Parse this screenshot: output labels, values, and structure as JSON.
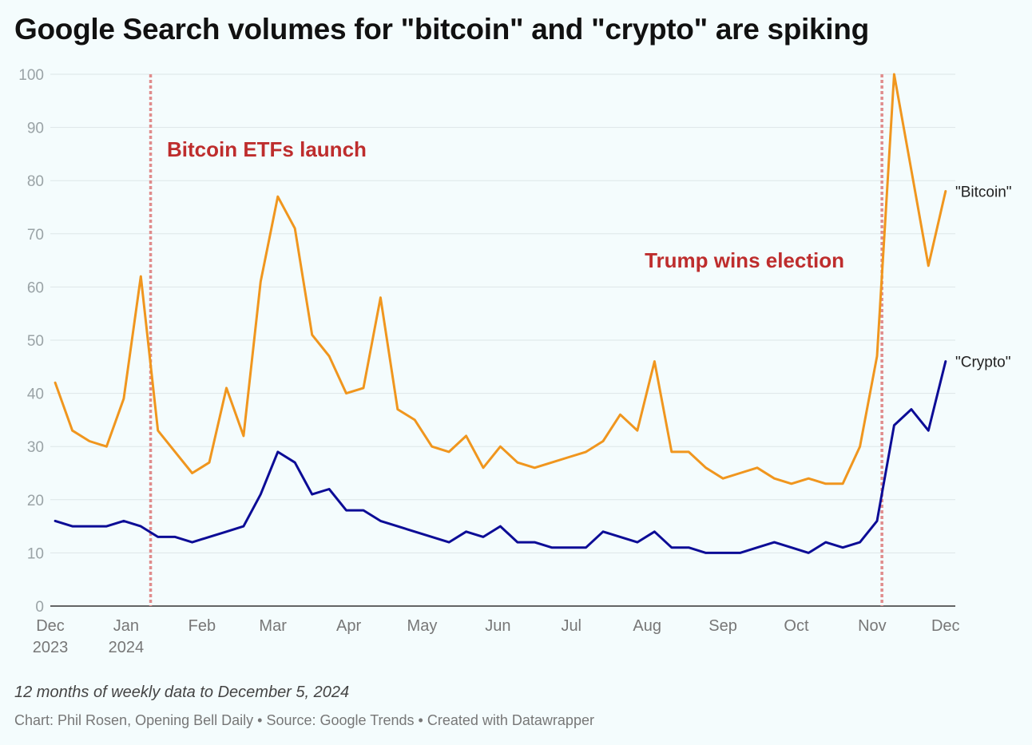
{
  "chart_data": {
    "type": "line",
    "title": "Google Search volumes for \"bitcoin\" and \"crypto\" are spiking",
    "subtitle": "",
    "xlabel": "",
    "ylabel": "",
    "ylim": [
      0,
      100
    ],
    "yticks": [
      0,
      10,
      20,
      30,
      40,
      50,
      60,
      70,
      80,
      90,
      100
    ],
    "grid": true,
    "x_axis_type": "time",
    "xlim": [
      "2023-12-01",
      "2024-12-05"
    ],
    "x_tick_dates": [
      "2023-12-01",
      "2024-01-01",
      "2024-02-01",
      "2024-03-01",
      "2024-04-01",
      "2024-05-01",
      "2024-06-01",
      "2024-07-01",
      "2024-08-01",
      "2024-09-01",
      "2024-10-01",
      "2024-11-01",
      "2024-12-01"
    ],
    "x_tick_labels": [
      [
        "Dec",
        "2023"
      ],
      [
        "Jan",
        "2024"
      ],
      [
        "Feb"
      ],
      [
        "Mar"
      ],
      [
        "Apr"
      ],
      [
        "May"
      ],
      [
        "Jun"
      ],
      [
        "Jul"
      ],
      [
        "Aug"
      ],
      [
        "Sep"
      ],
      [
        "Oct"
      ],
      [
        "Nov"
      ],
      [
        "Dec"
      ]
    ],
    "x_dates": [
      "2023-12-03",
      "2023-12-10",
      "2023-12-17",
      "2023-12-24",
      "2023-12-31",
      "2024-01-07",
      "2024-01-14",
      "2024-01-21",
      "2024-01-28",
      "2024-02-04",
      "2024-02-11",
      "2024-02-18",
      "2024-02-25",
      "2024-03-03",
      "2024-03-10",
      "2024-03-17",
      "2024-03-24",
      "2024-03-31",
      "2024-04-07",
      "2024-04-14",
      "2024-04-21",
      "2024-04-28",
      "2024-05-05",
      "2024-05-12",
      "2024-05-19",
      "2024-05-26",
      "2024-06-02",
      "2024-06-09",
      "2024-06-16",
      "2024-06-23",
      "2024-06-30",
      "2024-07-07",
      "2024-07-14",
      "2024-07-21",
      "2024-07-28",
      "2024-08-04",
      "2024-08-11",
      "2024-08-18",
      "2024-08-25",
      "2024-09-01",
      "2024-09-08",
      "2024-09-15",
      "2024-09-22",
      "2024-09-29",
      "2024-10-06",
      "2024-10-13",
      "2024-10-20",
      "2024-10-27",
      "2024-11-03",
      "2024-11-10",
      "2024-11-17",
      "2024-11-24",
      "2024-12-01"
    ],
    "series": [
      {
        "name": "\"Bitcoin\"",
        "color": "#f0961e",
        "values": [
          42,
          33,
          31,
          30,
          39,
          62,
          33,
          29,
          25,
          27,
          41,
          32,
          61,
          77,
          71,
          51,
          47,
          40,
          41,
          58,
          37,
          35,
          30,
          29,
          32,
          26,
          30,
          27,
          26,
          27,
          28,
          29,
          31,
          36,
          33,
          46,
          29,
          29,
          26,
          24,
          25,
          26,
          24,
          23,
          24,
          23,
          23,
          30,
          47,
          100,
          82,
          64,
          78
        ]
      },
      {
        "name": "\"Crypto\"",
        "color": "#0c0c96",
        "values": [
          16,
          15,
          15,
          15,
          16,
          15,
          13,
          13,
          12,
          13,
          14,
          15,
          21,
          29,
          27,
          21,
          22,
          18,
          18,
          16,
          15,
          14,
          13,
          12,
          14,
          13,
          15,
          12,
          12,
          11,
          11,
          11,
          14,
          13,
          12,
          14,
          11,
          11,
          10,
          10,
          10,
          11,
          12,
          11,
          10,
          12,
          11,
          12,
          16,
          34,
          37,
          33,
          46
        ]
      }
    ],
    "annotations": [
      {
        "date": "2024-01-11",
        "label": "Bitcoin ETFs launch",
        "color": "#be2d2d",
        "line_color": "#e08c8c"
      },
      {
        "date": "2024-11-05",
        "label": "Trump wins election",
        "color": "#be2d2d",
        "line_color": "#e08c8c"
      }
    ],
    "colors": {
      "grid": "#dde6e8",
      "axis": "#333333",
      "tick_label": "#777777",
      "y_tick_label": "#9aa3a6"
    }
  },
  "footer": {
    "note": "12 months of weekly data to December 5, 2024",
    "credit": "Chart: Phil Rosen, Opening Bell Daily • Source: Google Trends • Created with Datawrapper"
  }
}
